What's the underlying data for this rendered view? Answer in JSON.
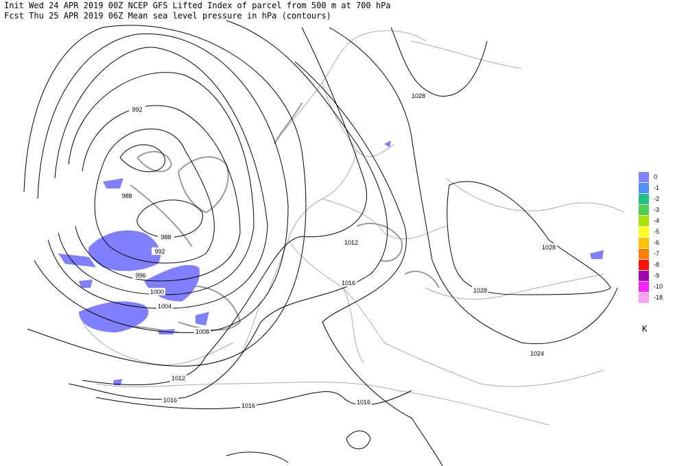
{
  "header": {
    "line1": "Init  Wed 24 APR 2019 00Z  NCEP GFS Lifted Index of parcel from 500 m at 700 hPa",
    "line2": "Fcst Thu 25 APR 2019 06Z  Mean sea level pressure in hPa (contours)"
  },
  "contour_labels": [
    992,
    988,
    988,
    992,
    996,
    1000,
    1004,
    1008,
    1012,
    1016,
    1016,
    1016,
    1016,
    1012,
    1028,
    1028,
    1028,
    1024
  ],
  "legend": {
    "unit": "K",
    "items": [
      {
        "value": 0,
        "color": "#7f7fff"
      },
      {
        "value": -1,
        "color": "#4f8fff"
      },
      {
        "value": -2,
        "color": "#20c080"
      },
      {
        "value": -3,
        "color": "#50d050"
      },
      {
        "value": -4,
        "color": "#a8e000"
      },
      {
        "value": -5,
        "color": "#ffff20"
      },
      {
        "value": -6,
        "color": "#ffc000"
      },
      {
        "value": -7,
        "color": "#ff8000"
      },
      {
        "value": -8,
        "color": "#ff1000"
      },
      {
        "value": -9,
        "color": "#a000b0"
      },
      {
        "value": -10,
        "color": "#ff20ff"
      },
      {
        "value": -18,
        "color": "#ffa0f0"
      }
    ]
  }
}
